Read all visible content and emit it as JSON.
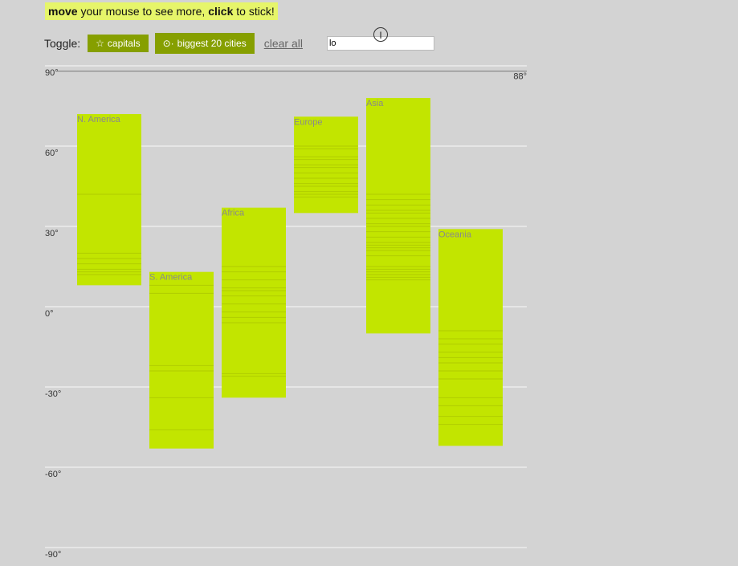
{
  "banner": {
    "move": "move",
    "middle": " your mouse to see more, ",
    "click": "click",
    "end": " to stick!"
  },
  "controls": {
    "toggle_label": "Toggle:",
    "capitals_label": "capitals",
    "capitals_icon": "star-icon",
    "biggest_label": "biggest 20 cities",
    "biggest_icon": "target-icon",
    "clear_label": "clear all",
    "search_value": "lo"
  },
  "cursor_glyph": "I",
  "colors": {
    "bar": "#c2e500",
    "background": "#d3d3d3",
    "button": "#869f00",
    "banner": "#e6f56a",
    "grid": "#e6e6e6",
    "city_line": "#b0cc00"
  },
  "hover_readout": "88°",
  "chart_data": {
    "type": "bar",
    "title": "",
    "xlabel": "",
    "ylabel": "",
    "ylim": [
      -90,
      90
    ],
    "yticks": [
      90,
      60,
      30,
      0,
      -30,
      -60,
      -90
    ],
    "ytick_labels": [
      "90°",
      "60°",
      "30°",
      "0°",
      "-30°",
      "-60°",
      "-90°"
    ],
    "grid": true,
    "categories": [
      "N. America",
      "S. America",
      "Africa",
      "Europe",
      "Asia",
      "Oceania"
    ],
    "ranges": [
      {
        "name": "N. America",
        "max": 72,
        "min": 8,
        "lines": [
          42,
          20,
          18,
          16,
          14,
          13,
          12
        ]
      },
      {
        "name": "S. America",
        "max": 13,
        "min": -53,
        "lines": [
          8,
          5,
          -22,
          -24,
          -34,
          -46
        ]
      },
      {
        "name": "Africa",
        "max": 37,
        "min": -34,
        "lines": [
          15,
          13,
          10,
          7,
          6,
          4,
          1,
          -2,
          -4,
          -6,
          -25,
          -26
        ]
      },
      {
        "name": "Europe",
        "max": 71,
        "min": 35,
        "lines": [
          60,
          59,
          56,
          55,
          53,
          52,
          50,
          48,
          46,
          45,
          43,
          42,
          41
        ]
      },
      {
        "name": "Asia",
        "max": 78,
        "min": -10,
        "lines": [
          42,
          40,
          38,
          36,
          35,
          33,
          31,
          30,
          28,
          26,
          24,
          23,
          22,
          21,
          19,
          15,
          14,
          13,
          12,
          11,
          10
        ]
      },
      {
        "name": "Oceania",
        "max": 29,
        "min": -52,
        "lines": [
          -9,
          -12,
          -14,
          -17,
          -19,
          -21,
          -24,
          -27,
          -34,
          -37,
          -41,
          -44
        ]
      }
    ],
    "hover_latitude": 88
  }
}
